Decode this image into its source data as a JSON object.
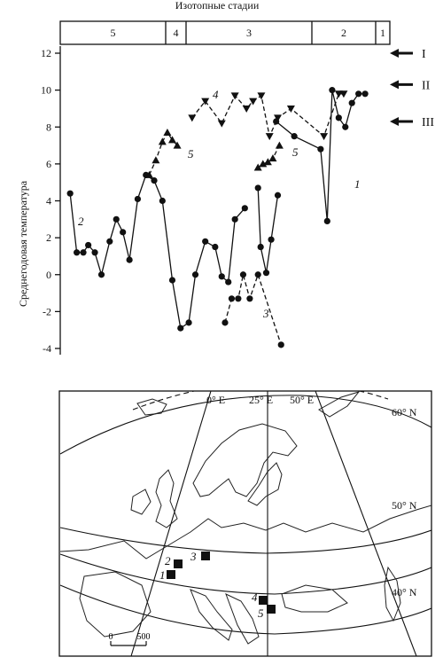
{
  "chart_data": {
    "type": "line",
    "title": "Изотопные стадии",
    "ylabel": "Среднегодовая температура",
    "ylim": [
      -4,
      12
    ],
    "yticks": [
      "12",
      "10",
      "8",
      "6",
      "4",
      "2",
      "0",
      "-2",
      "-4"
    ],
    "stages": [
      "5",
      "4",
      "3",
      "2",
      "1"
    ],
    "levels": [
      {
        "name": "I",
        "y": 12
      },
      {
        "name": "II",
        "y": 10.3
      },
      {
        "name": "III",
        "y": 8.3
      }
    ],
    "series": [
      {
        "name": "1",
        "marker": "circle",
        "dash": false,
        "values": [
          [
            0.6,
            4.7
          ],
          [
            0.608,
            1.5
          ],
          [
            0.625,
            0.1
          ],
          [
            0.64,
            1.9
          ],
          [
            0.66,
            4.3
          ]
        ]
      },
      {
        "name": "1",
        "marker": "circle",
        "dash": false,
        "values": [
          [
            0.655,
            8.3
          ],
          [
            0.71,
            7.5
          ],
          [
            0.79,
            6.8
          ],
          [
            0.81,
            2.9
          ],
          [
            0.825,
            10.0
          ],
          [
            0.845,
            8.5
          ],
          [
            0.865,
            8.0
          ],
          [
            0.885,
            9.3
          ],
          [
            0.905,
            9.8
          ],
          [
            0.925,
            9.8
          ]
        ]
      },
      {
        "name": "2",
        "marker": "circle",
        "dash": false,
        "values": [
          [
            0.03,
            4.4
          ],
          [
            0.05,
            1.2
          ],
          [
            0.07,
            1.2
          ],
          [
            0.085,
            1.6
          ],
          [
            0.105,
            1.2
          ],
          [
            0.125,
            0.0
          ],
          [
            0.15,
            1.8
          ],
          [
            0.17,
            3.0
          ],
          [
            0.19,
            2.3
          ],
          [
            0.21,
            0.8
          ],
          [
            0.235,
            4.1
          ],
          [
            0.26,
            5.4
          ],
          [
            0.285,
            5.1
          ],
          [
            0.31,
            4.0
          ],
          [
            0.34,
            -0.3
          ],
          [
            0.365,
            -2.9
          ],
          [
            0.39,
            -2.6
          ],
          [
            0.41,
            0.0
          ],
          [
            0.44,
            1.8
          ],
          [
            0.47,
            1.5
          ],
          [
            0.49,
            -0.1
          ],
          [
            0.51,
            -0.4
          ],
          [
            0.53,
            3.0
          ],
          [
            0.56,
            3.6
          ]
        ]
      },
      {
        "name": "3",
        "marker": "circle",
        "dash": true,
        "values": [
          [
            0.5,
            -2.6
          ],
          [
            0.52,
            -1.3
          ],
          [
            0.54,
            -1.3
          ],
          [
            0.555,
            0.0
          ],
          [
            0.575,
            -1.3
          ],
          [
            0.6,
            0.0
          ],
          [
            0.67,
            -3.8
          ]
        ]
      },
      {
        "name": "4",
        "marker": "triangle-down",
        "dash": true,
        "values": [
          [
            0.4,
            8.5
          ],
          [
            0.44,
            9.4
          ],
          [
            0.49,
            8.2
          ],
          [
            0.53,
            9.7
          ],
          [
            0.565,
            9.0
          ],
          [
            0.585,
            9.4
          ],
          [
            0.61,
            9.7
          ],
          [
            0.635,
            7.5
          ],
          [
            0.66,
            8.5
          ],
          [
            0.7,
            9.0
          ],
          [
            0.8,
            7.5
          ],
          [
            0.845,
            9.8
          ],
          [
            0.86,
            9.8
          ]
        ]
      },
      {
        "name": "5",
        "marker": "triangle-up",
        "dash": true,
        "values": [
          [
            0.27,
            5.4
          ],
          [
            0.29,
            6.2
          ],
          [
            0.31,
            7.2
          ],
          [
            0.325,
            7.7
          ],
          [
            0.34,
            7.3
          ],
          [
            0.355,
            7.0
          ]
        ]
      },
      {
        "name": "5",
        "marker": "triangle-up",
        "dash": true,
        "values": [
          [
            0.6,
            5.8
          ],
          [
            0.615,
            6.0
          ],
          [
            0.63,
            6.1
          ],
          [
            0.645,
            6.3
          ],
          [
            0.665,
            7.0
          ]
        ]
      }
    ],
    "annotations": [
      "1",
      "2",
      "3",
      "4",
      "5"
    ]
  },
  "map": {
    "lon_labels": [
      "0° E",
      "25° E",
      "50° E"
    ],
    "lat_labels": [
      "60° N",
      "50° N",
      "40° N"
    ],
    "site_labels": [
      "1",
      "2",
      "3",
      "4",
      "5"
    ],
    "scale": {
      "start": "0",
      "end": "500"
    }
  }
}
